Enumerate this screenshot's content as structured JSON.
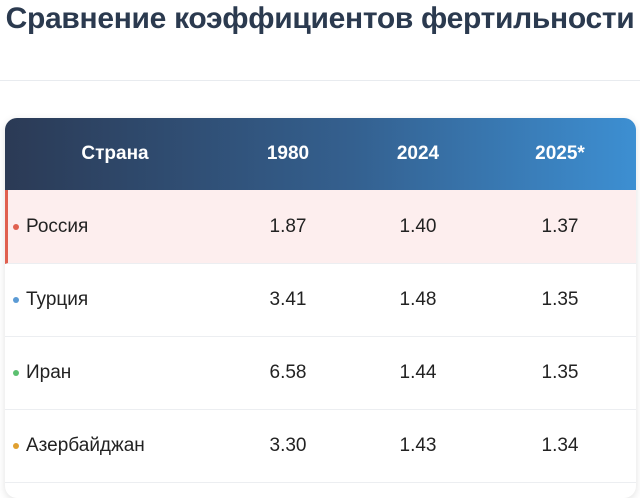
{
  "header": {
    "title": "Сравнение коэффициентов фертильности"
  },
  "table": {
    "columns": [
      "Страна",
      "1980",
      "2024",
      "2025*"
    ],
    "rows": [
      [
        "Россия",
        "1.87",
        "1.40",
        "1.37"
      ],
      [
        "Турция",
        "3.41",
        "1.48",
        "1.35"
      ],
      [
        "Иран",
        "6.58",
        "1.44",
        "1.35"
      ],
      [
        "Азербайджан",
        "3.30",
        "1.43",
        "1.34"
      ]
    ]
  }
}
